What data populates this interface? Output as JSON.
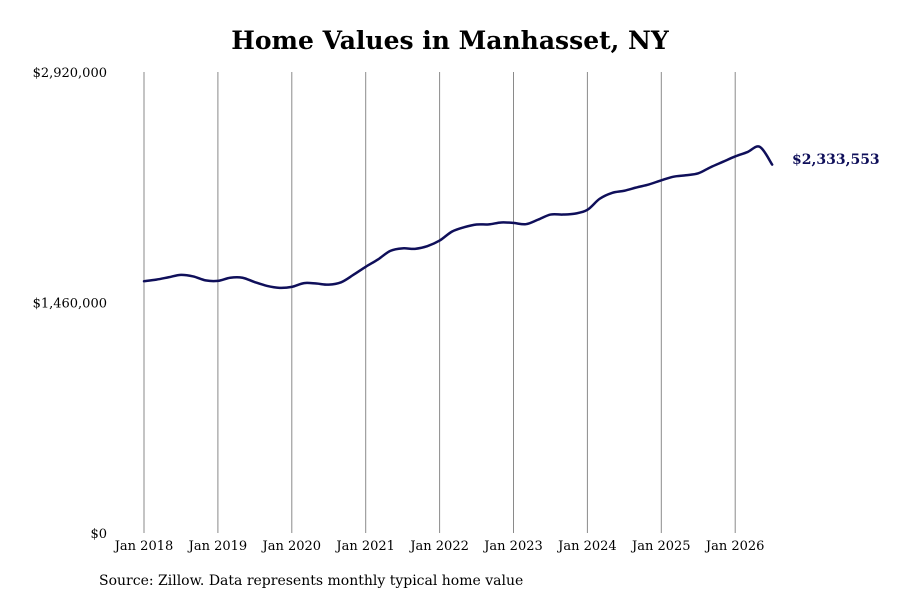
{
  "title": "Home Values in Manhasset, NY",
  "footer": {
    "source": "Source: Zillow. Data represents monthly typical home value"
  },
  "chart_data": {
    "type": "line",
    "title": "Home Values in Manhasset, NY",
    "xlabel": "",
    "ylabel": "",
    "x_tick_labels": [
      "Jan 2018",
      "Jan 2019",
      "Jan 2020",
      "Jan 2021",
      "Jan 2022",
      "Jan 2023",
      "Jan 2024",
      "Jan 2025",
      "Jan 2026"
    ],
    "y_tick_labels": [
      "$0",
      "$1,460,000",
      "$2,920,000"
    ],
    "ylim": [
      0,
      2920000
    ],
    "xlim": [
      "2018-01",
      "2026-07"
    ],
    "grid": "vertical",
    "line_color": "#0f0f5a",
    "end_label": "$2,333,553",
    "series": [
      {
        "x": [
          "2018-01",
          "2018-03",
          "2018-05",
          "2018-07",
          "2018-09",
          "2018-11",
          "2019-01",
          "2019-03",
          "2019-05",
          "2019-07",
          "2019-09",
          "2019-11",
          "2020-01",
          "2020-03",
          "2020-05",
          "2020-07",
          "2020-09",
          "2020-11",
          "2021-01",
          "2021-03",
          "2021-05",
          "2021-07",
          "2021-09",
          "2021-11",
          "2022-01",
          "2022-03",
          "2022-05",
          "2022-07",
          "2022-09",
          "2022-11",
          "2023-01",
          "2023-03",
          "2023-05",
          "2023-07",
          "2023-09",
          "2023-11",
          "2024-01",
          "2024-03",
          "2024-05",
          "2024-07",
          "2024-09",
          "2024-11",
          "2025-01",
          "2025-03",
          "2025-05",
          "2025-07",
          "2025-09",
          "2025-11",
          "2026-01",
          "2026-03",
          "2026-05",
          "2026-07"
        ],
        "values": [
          1595000,
          1605000,
          1620000,
          1635000,
          1625000,
          1600000,
          1597000,
          1617000,
          1617000,
          1589000,
          1565000,
          1553000,
          1559000,
          1583000,
          1580000,
          1573000,
          1588000,
          1635000,
          1686000,
          1733000,
          1787000,
          1803000,
          1800000,
          1817000,
          1852000,
          1909000,
          1937000,
          1954000,
          1955000,
          1967000,
          1964000,
          1956000,
          1985000,
          2017000,
          2017000,
          2023000,
          2047000,
          2117000,
          2154000,
          2168000,
          2189000,
          2208000,
          2234000,
          2257000,
          2266000,
          2278000,
          2317000,
          2351000,
          2385000,
          2413000,
          2446000,
          2333553
        ]
      }
    ]
  }
}
